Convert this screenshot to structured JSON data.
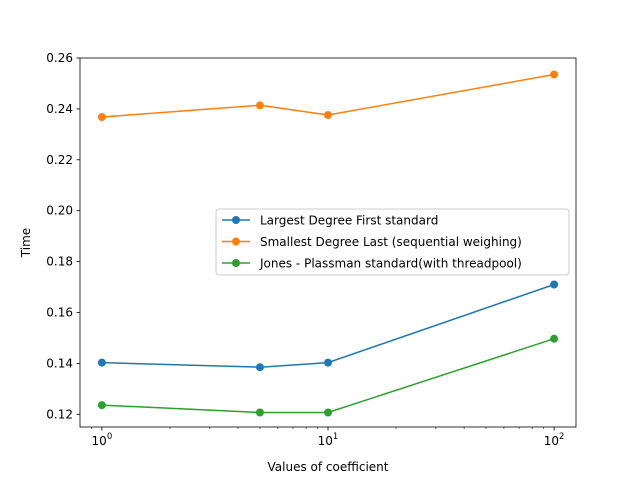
{
  "chart_data": {
    "type": "line",
    "xscale": "log",
    "xlabel": "Values of coefficient",
    "ylabel": "Time",
    "x": [
      1,
      5,
      10,
      100
    ],
    "xlim": [
      0.8,
      125
    ],
    "ylim": [
      0.115,
      0.26
    ],
    "xticks": [
      {
        "value": 1,
        "base": "10",
        "exp": "0"
      },
      {
        "value": 10,
        "base": "10",
        "exp": "1"
      },
      {
        "value": 100,
        "base": "10",
        "exp": "2"
      }
    ],
    "yticks": [
      {
        "value": 0.12,
        "label": "0.12"
      },
      {
        "value": 0.14,
        "label": "0.14"
      },
      {
        "value": 0.16,
        "label": "0.16"
      },
      {
        "value": 0.18,
        "label": "0.18"
      },
      {
        "value": 0.2,
        "label": "0.20"
      },
      {
        "value": 0.22,
        "label": "0.22"
      },
      {
        "value": 0.24,
        "label": "0.24"
      },
      {
        "value": 0.26,
        "label": "0.26"
      }
    ],
    "grid": false,
    "legend_position": "center-right",
    "series": [
      {
        "name": "Largest Degree First standard",
        "color": "#1f77b4",
        "values": [
          0.1403,
          0.1385,
          0.1403,
          0.171
        ]
      },
      {
        "name": "Smallest Degree Last (sequential weighing)",
        "color": "#ff7f0e",
        "values": [
          0.2368,
          0.2414,
          0.2376,
          0.2535
        ]
      },
      {
        "name": "Jones - Plassman standard(with threadpool)",
        "color": "#2ca02c",
        "values": [
          0.1236,
          0.1207,
          0.1207,
          0.1497
        ]
      }
    ]
  }
}
